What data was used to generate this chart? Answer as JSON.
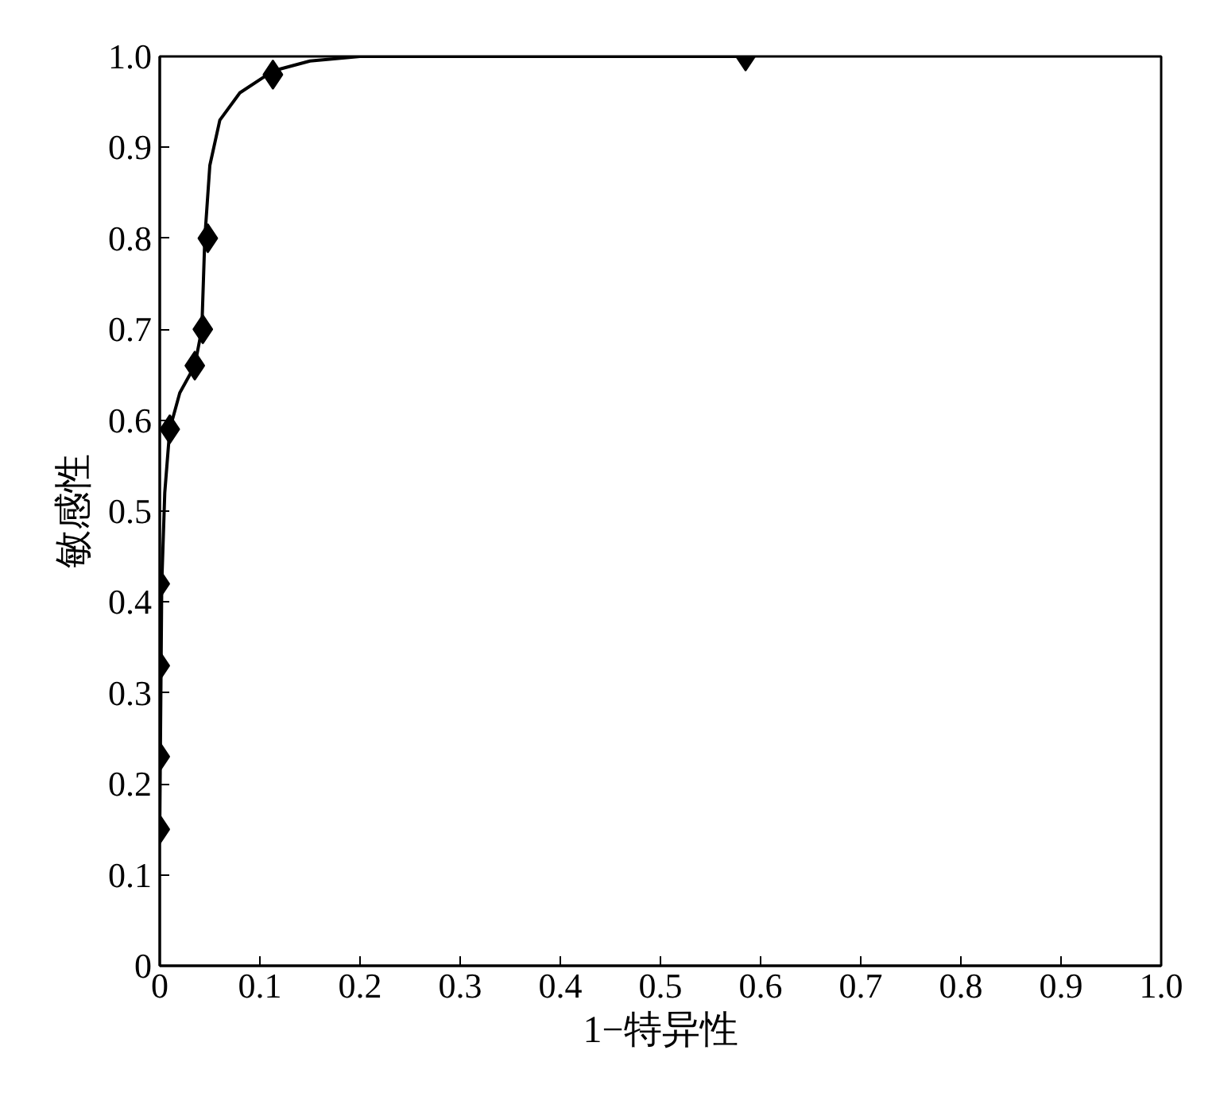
{
  "chart_data": {
    "type": "scatter",
    "xlabel": "1−特异性",
    "ylabel": "敏感性",
    "xlim": [
      0,
      1
    ],
    "ylim": [
      0,
      1
    ],
    "xticks": [
      0,
      0.1,
      0.2,
      0.3,
      0.4,
      0.5,
      0.6,
      0.7,
      0.8,
      0.9,
      {
        "value": 1,
        "label": "1.0"
      }
    ],
    "yticks": [
      0,
      0.1,
      0.2,
      0.3,
      0.4,
      0.5,
      0.6,
      0.7,
      0.8,
      0.9,
      {
        "value": 1,
        "label": "1.0"
      }
    ],
    "grid": false,
    "series": [
      {
        "type": "line",
        "color": "#000000",
        "marker": "none",
        "line_style": "solid",
        "x": [
          0,
          0.002,
          0.005,
          0.01,
          0.02,
          0.035,
          0.042,
          0.045,
          0.05,
          0.06,
          0.08,
          0.113,
          0.15,
          0.2,
          0.3,
          0.585
        ],
        "values": [
          0.15,
          0.42,
          0.52,
          0.59,
          0.63,
          0.66,
          0.7,
          0.8,
          0.88,
          0.93,
          0.96,
          0.984,
          0.995,
          1.0,
          1.0,
          1.0
        ]
      },
      {
        "color": "#000000",
        "marker": "diamond",
        "x": [
          0,
          0,
          0,
          0,
          0.01,
          0.035,
          0.043,
          0.048,
          0.113,
          0.585
        ],
        "values": [
          0.15,
          0.23,
          0.33,
          0.42,
          0.59,
          0.66,
          0.7,
          0.8,
          0.98,
          1.0
        ]
      }
    ]
  }
}
